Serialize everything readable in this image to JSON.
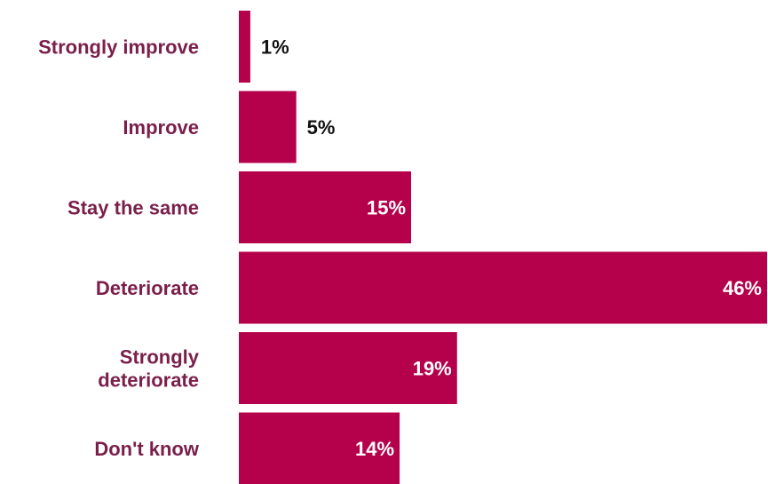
{
  "chart_data": {
    "type": "bar",
    "orientation": "horizontal",
    "title": "",
    "xlabel": "",
    "ylabel": "",
    "categories": [
      [
        "Strongly improve"
      ],
      [
        "Improve"
      ],
      [
        "Stay the same"
      ],
      [
        "Deteriorate"
      ],
      [
        "Strongly",
        "deteriorate"
      ],
      [
        "Don't know"
      ]
    ],
    "values": [
      1,
      5,
      15,
      46,
      19,
      14
    ],
    "value_labels": [
      "1%",
      "5%",
      "15%",
      "46%",
      "19%",
      "14%"
    ],
    "value_unit": "%",
    "grid": false,
    "legend": "none",
    "colors": {
      "bar": "#b5004b",
      "category_text": "#7a1f4a",
      "value_text_inside": "#ffffff",
      "value_text_outside": "#111111"
    }
  }
}
